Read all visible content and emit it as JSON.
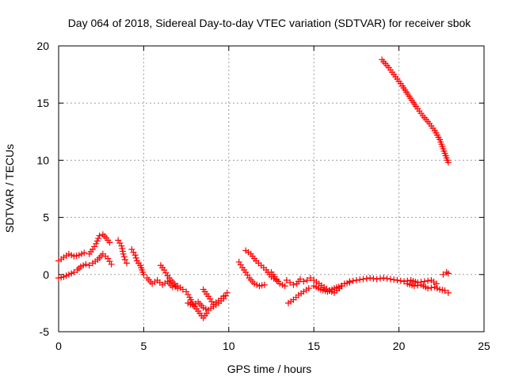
{
  "chart_data": {
    "type": "scatter",
    "title": "Day 064 of 2018, Sidereal Day-to-day VTEC variation (SDTVAR) for receiver sbok",
    "xlabel": "GPS time / hours",
    "ylabel": "SDTVAR / TECUs",
    "xlim": [
      0,
      25
    ],
    "ylim": [
      -5,
      20
    ],
    "xticks": [
      "0",
      "5",
      "10",
      "15",
      "20",
      "25"
    ],
    "yticks": [
      "-5",
      "0",
      "5",
      "10",
      "15",
      "20"
    ],
    "xtick_values": [
      0,
      5,
      10,
      15,
      20,
      25
    ],
    "ytick_values": [
      -5,
      0,
      5,
      10,
      15,
      20
    ],
    "grid": true,
    "marker": "plus",
    "series": [
      {
        "name": "SDTVAR",
        "color": "#ff0000",
        "segments": [
          {
            "x": [
              0.0,
              0.3,
              0.6,
              0.9,
              1.2,
              1.5
            ],
            "y": [
              1.2,
              1.5,
              1.8,
              1.6,
              1.7,
              1.9
            ]
          },
          {
            "x": [
              0.0,
              0.3,
              0.6,
              0.9,
              1.1,
              1.3,
              1.6,
              1.8
            ],
            "y": [
              -0.3,
              -0.2,
              0.0,
              0.2,
              0.4,
              0.7,
              0.9,
              0.8
            ]
          },
          {
            "x": [
              1.8,
              2.0,
              2.2,
              2.4,
              2.6,
              2.8,
              3.0
            ],
            "y": [
              1.8,
              2.2,
              2.7,
              3.4,
              3.5,
              3.2,
              2.8
            ]
          },
          {
            "x": [
              2.0,
              2.3,
              2.6,
              2.9,
              3.1
            ],
            "y": [
              1.0,
              1.3,
              1.8,
              1.4,
              0.9
            ]
          },
          {
            "x": [
              3.5,
              3.7,
              3.8,
              3.9,
              4.0
            ],
            "y": [
              3.0,
              2.5,
              1.8,
              1.3,
              1.0
            ]
          },
          {
            "x": [
              4.3,
              4.5,
              4.6,
              4.8,
              4.9,
              5.0
            ],
            "y": [
              2.2,
              1.7,
              1.2,
              0.8,
              0.4,
              0.0
            ]
          },
          {
            "x": [
              5.2,
              5.5,
              5.8,
              6.1,
              6.4,
              6.7,
              7.0,
              7.3
            ],
            "y": [
              -0.3,
              -0.8,
              -0.5,
              -0.9,
              -0.6,
              -1.1,
              -1.0,
              -1.3
            ]
          },
          {
            "x": [
              6.0,
              6.2,
              6.4,
              6.6,
              6.8,
              7.0
            ],
            "y": [
              0.8,
              0.4,
              -0.1,
              -0.5,
              -0.8,
              -1.2
            ]
          },
          {
            "x": [
              7.5,
              7.7,
              7.9,
              8.1,
              8.3,
              8.5,
              8.7
            ],
            "y": [
              -1.5,
              -2.0,
              -2.6,
              -3.0,
              -3.4,
              -3.8,
              -3.4
            ]
          },
          {
            "x": [
              7.6,
              7.9,
              8.2,
              8.5,
              8.8,
              9.1,
              9.4,
              9.7,
              9.9
            ],
            "y": [
              -2.5,
              -2.7,
              -2.4,
              -2.9,
              -3.1,
              -2.8,
              -2.5,
              -2.1,
              -1.6
            ]
          },
          {
            "x": [
              8.5,
              8.8,
              9.1,
              9.4,
              9.7
            ],
            "y": [
              -1.3,
              -1.9,
              -2.6,
              -2.3,
              -1.9
            ]
          },
          {
            "x": [
              10.6,
              10.8,
              11.0,
              11.2,
              11.5,
              11.8,
              12.1
            ],
            "y": [
              1.1,
              0.6,
              0.2,
              -0.3,
              -0.8,
              -1.0,
              -0.9
            ]
          },
          {
            "x": [
              11.0,
              11.3,
              11.6,
              11.9,
              12.2,
              12.5,
              12.8
            ],
            "y": [
              2.1,
              1.8,
              1.2,
              0.8,
              0.4,
              -0.2,
              -0.5
            ]
          },
          {
            "x": [
              12.5,
              12.8,
              13.0,
              13.3
            ],
            "y": [
              0.2,
              -0.4,
              -0.8,
              -1.0
            ]
          },
          {
            "x": [
              13.4,
              13.6,
              13.8,
              14.0,
              14.2,
              14.4,
              14.6
            ],
            "y": [
              -0.5,
              -0.7,
              -0.9,
              -0.8,
              -0.4,
              -0.6,
              -0.5
            ]
          },
          {
            "x": [
              13.5,
              13.8,
              14.1,
              14.4,
              14.7
            ],
            "y": [
              -2.5,
              -2.2,
              -1.8,
              -1.5,
              -1.2
            ]
          },
          {
            "x": [
              14.8,
              15.0,
              15.3,
              15.6,
              15.9,
              16.2,
              16.5,
              16.8,
              17.1
            ],
            "y": [
              -0.3,
              -0.5,
              -0.8,
              -1.1,
              -1.4,
              -1.6,
              -1.2,
              -0.8,
              -0.7
            ]
          },
          {
            "x": [
              15.0,
              15.4,
              15.8,
              16.2,
              16.6
            ],
            "y": [
              -1.0,
              -1.3,
              -1.5,
              -1.2,
              -1.0
            ]
          },
          {
            "x": [
              17.1,
              17.5,
              17.9,
              18.3,
              18.7,
              19.1,
              19.5,
              19.9,
              20.3,
              20.7,
              21.1,
              21.5,
              21.9,
              22.2
            ],
            "y": [
              -0.6,
              -0.5,
              -0.4,
              -0.3,
              -0.4,
              -0.3,
              -0.4,
              -0.5,
              -0.6,
              -0.5,
              -0.7,
              -0.6,
              -0.5,
              -0.8
            ]
          },
          {
            "x": [
              20.5,
              20.9,
              21.3,
              21.7,
              22.1,
              22.4,
              22.7,
              22.9
            ],
            "y": [
              -0.8,
              -1.0,
              -0.9,
              -1.2,
              -1.1,
              -1.3,
              -1.4,
              -1.6
            ]
          },
          {
            "x": [
              22.6,
              22.8,
              22.9
            ],
            "y": [
              0.0,
              0.2,
              0.1
            ]
          },
          {
            "x": [
              19.0,
              19.4,
              19.8,
              20.2,
              20.6,
              21.0,
              21.4,
              21.8,
              22.1,
              22.4,
              22.6,
              22.9
            ],
            "y": [
              18.8,
              18.1,
              17.3,
              16.5,
              15.6,
              14.7,
              13.9,
              13.2,
              12.6,
              11.8,
              11.0,
              9.8
            ]
          }
        ]
      }
    ]
  }
}
